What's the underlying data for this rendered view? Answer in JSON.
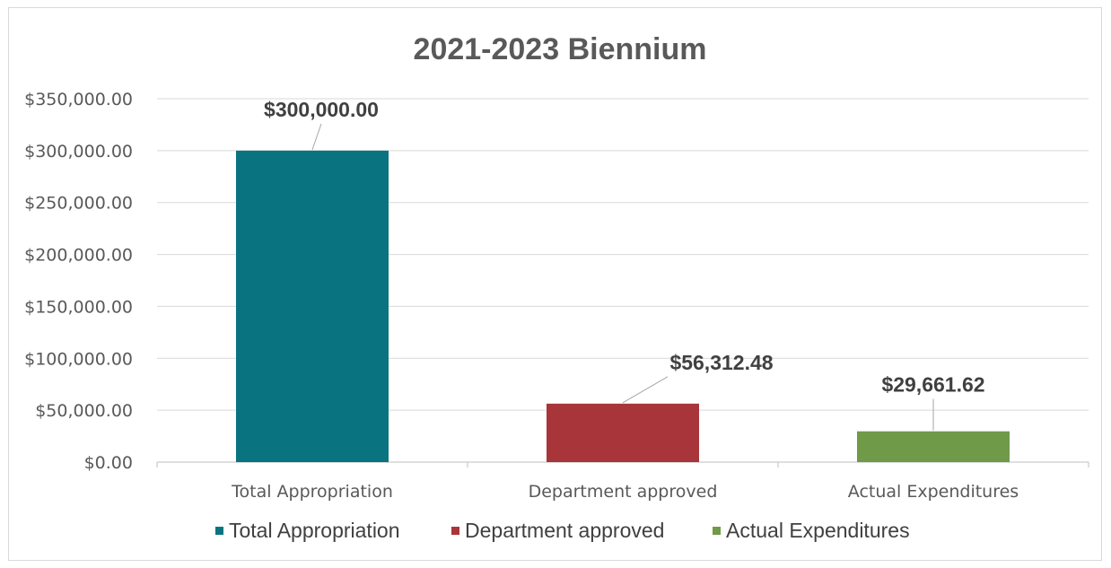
{
  "chart_data": {
    "type": "bar",
    "title": "2021-2023 Biennium",
    "categories": [
      "Total Appropriation",
      "Department approved",
      "Actual Expenditures"
    ],
    "values": [
      300000.0,
      56312.48,
      29661.62
    ],
    "data_labels": [
      "$300,000.00",
      "$56,312.48",
      "$29,661.62"
    ],
    "colors": [
      "#097480",
      "#a8353a",
      "#6f9a48"
    ],
    "ylim": [
      0,
      350000
    ],
    "y_ticks": [
      {
        "value": 0,
        "label": "$0.00"
      },
      {
        "value": 50000,
        "label": "$50,000.00"
      },
      {
        "value": 100000,
        "label": "$100,000.00"
      },
      {
        "value": 150000,
        "label": "$150,000.00"
      },
      {
        "value": 200000,
        "label": "$200,000.00"
      },
      {
        "value": 250000,
        "label": "$250,000.00"
      },
      {
        "value": 300000,
        "label": "$300,000.00"
      },
      {
        "value": 350000,
        "label": "$350,000.00"
      }
    ],
    "grid": true,
    "legend_position": "bottom",
    "legend": [
      "Total Appropriation",
      "Department approved",
      "Actual Expenditures"
    ]
  }
}
